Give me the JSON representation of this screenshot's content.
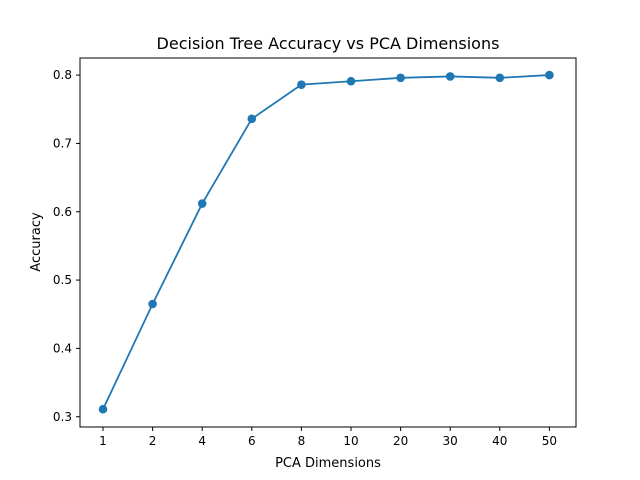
{
  "chart_data": {
    "type": "line",
    "title": "Decision Tree Accuracy vs PCA Dimensions",
    "xlabel": "PCA Dimensions",
    "ylabel": "Accuracy",
    "categories": [
      "1",
      "2",
      "4",
      "6",
      "8",
      "10",
      "20",
      "30",
      "40",
      "50"
    ],
    "series": [
      {
        "values": [
          0.311,
          0.465,
          0.612,
          0.736,
          0.786,
          0.791,
          0.796,
          0.798,
          0.796,
          0.8
        ],
        "color": "#1f77b4",
        "marker": "circle"
      }
    ],
    "yticks": [
      0.3,
      0.4,
      0.5,
      0.6,
      0.7,
      0.8
    ],
    "ylim": [
      0.285,
      0.825
    ],
    "grid": false,
    "legend": "none"
  }
}
